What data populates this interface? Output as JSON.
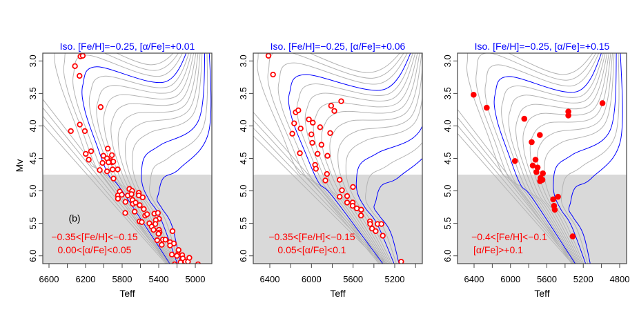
{
  "chart_data": [
    {
      "type": "scatter",
      "title": "Iso. [Fe/H]=−0.25,  [α/Fe]=+0.01",
      "xlabel": "Teff",
      "ylabel": "Mv",
      "xlim": [
        6668,
        4819
      ],
      "ylim": [
        2.88,
        6.12
      ],
      "y_reversed": true,
      "xticks": [
        6600,
        6400,
        6200,
        6000,
        5800,
        5600,
        5400,
        5200,
        5000
      ],
      "xtick_labels": [
        "6600",
        "6200",
        "5800",
        "5400",
        "5000"
      ],
      "yticks": [
        "3.0",
        "3.5",
        "4.0",
        "4.5",
        "5.0",
        "5.5",
        "6.0"
      ],
      "shaded_band_mv_from": 4.75,
      "marker": "open-circle",
      "annotations": [
        "(b)",
        "−0.35<[Fe/H]<−0.15",
        "0.00<[α/Fe]<0.05"
      ],
      "points": [
        [
          6256,
          2.93
        ],
        [
          6231,
          2.92
        ],
        [
          6316,
          3.08
        ],
        [
          6266,
          3.23
        ],
        [
          6035,
          3.71
        ],
        [
          6263,
          3.98
        ],
        [
          6361,
          4.08
        ],
        [
          6208,
          4.08
        ],
        [
          6198,
          4.43
        ],
        [
          6140,
          4.39
        ],
        [
          6165,
          4.52
        ],
        [
          5957,
          4.35
        ],
        [
          6005,
          4.46
        ],
        [
          5965,
          4.5
        ],
        [
          5912,
          4.45
        ],
        [
          5919,
          4.54
        ],
        [
          5909,
          4.56
        ],
        [
          5897,
          4.55
        ],
        [
          5949,
          4.56
        ],
        [
          6015,
          4.57
        ],
        [
          6045,
          4.68
        ],
        [
          5965,
          4.7
        ],
        [
          5904,
          4.67
        ],
        [
          5849,
          4.67
        ],
        [
          5894,
          4.81
        ],
        [
          5721,
          4.97
        ],
        [
          5691,
          5.0
        ],
        [
          5826,
          5.01
        ],
        [
          5846,
          5.07
        ],
        [
          5846,
          5.12
        ],
        [
          5804,
          5.06
        ],
        [
          5738,
          5.07
        ],
        [
          5698,
          5.05
        ],
        [
          5764,
          5.17
        ],
        [
          5686,
          5.14
        ],
        [
          5618,
          5.03
        ],
        [
          5618,
          5.07
        ],
        [
          5683,
          5.2
        ],
        [
          5653,
          5.18
        ],
        [
          5608,
          5.22
        ],
        [
          5575,
          5.1
        ],
        [
          5663,
          5.32
        ],
        [
          5766,
          5.34
        ],
        [
          5563,
          5.28
        ],
        [
          5610,
          5.47
        ],
        [
          5585,
          5.48
        ],
        [
          5548,
          5.38
        ],
        [
          5527,
          5.36
        ],
        [
          5447,
          5.35
        ],
        [
          5409,
          5.34
        ],
        [
          5397,
          5.43
        ],
        [
          5432,
          5.45
        ],
        [
          5437,
          5.51
        ],
        [
          5502,
          5.5
        ],
        [
          5477,
          5.55
        ],
        [
          5457,
          5.6
        ],
        [
          5397,
          5.6
        ],
        [
          5392,
          5.64
        ],
        [
          5402,
          5.66
        ],
        [
          5417,
          5.76
        ],
        [
          5354,
          5.75
        ],
        [
          5326,
          5.75
        ],
        [
          5367,
          5.83
        ],
        [
          5276,
          5.79
        ],
        [
          5234,
          5.81
        ],
        [
          5276,
          5.84
        ],
        [
          5249,
          5.62
        ],
        [
          5256,
          5.98
        ],
        [
          5183,
          5.91
        ],
        [
          5191,
          5.98
        ],
        [
          5201,
          6.0
        ],
        [
          5143,
          5.99
        ],
        [
          5136,
          6.04
        ],
        [
          5161,
          6.1
        ],
        [
          5108,
          6.09
        ],
        [
          5080,
          6.09
        ],
        [
          5065,
          6.03
        ],
        [
          4970,
          6.13
        ],
        [
          5226,
          6.13
        ]
      ]
    },
    {
      "type": "scatter",
      "title": "Iso. [Fe/H]=−0.25,  [α/Fe]=+0.06",
      "xlabel": "Teff",
      "ylabel": "",
      "xlim": [
        6559,
        4935
      ],
      "ylim": [
        2.88,
        6.12
      ],
      "y_reversed": true,
      "xticks": [
        6400,
        6200,
        6000,
        5800,
        5600,
        5400,
        5200,
        5000
      ],
      "xtick_labels": [
        "6400",
        "6000",
        "5600",
        "5200"
      ],
      "yticks": [
        "3.0",
        "3.5",
        "4.0",
        "4.5",
        "5.0",
        "5.5",
        "6.0"
      ],
      "shaded_band_mv_from": 4.75,
      "marker": "open-circle",
      "annotations": [
        "",
        "−0.35<[Fe/H]<−0.15",
        "0.05<[α/Fe]<0.1"
      ],
      "points": [
        [
          6413,
          2.92
        ],
        [
          6369,
          3.21
        ],
        [
          5714,
          3.62
        ],
        [
          5811,
          3.69
        ],
        [
          5780,
          3.77
        ],
        [
          6151,
          3.79
        ],
        [
          6126,
          3.76
        ],
        [
          6025,
          3.9
        ],
        [
          5987,
          3.95
        ],
        [
          6166,
          3.96
        ],
        [
          5917,
          4.02
        ],
        [
          6104,
          4.04
        ],
        [
          6184,
          4.12
        ],
        [
          6001,
          4.13
        ],
        [
          5820,
          4.11
        ],
        [
          5992,
          4.26
        ],
        [
          5904,
          4.29
        ],
        [
          5941,
          4.43
        ],
        [
          6111,
          4.42
        ],
        [
          5846,
          4.46
        ],
        [
          5965,
          4.6
        ],
        [
          5957,
          4.66
        ],
        [
          5851,
          4.74
        ],
        [
          5866,
          4.84
        ],
        [
          5729,
          4.83
        ],
        [
          5601,
          4.94
        ],
        [
          5707,
          4.99
        ],
        [
          5729,
          5.09
        ],
        [
          5657,
          5.08
        ],
        [
          5657,
          5.18
        ],
        [
          5604,
          5.18
        ],
        [
          5604,
          5.23
        ],
        [
          5564,
          5.27
        ],
        [
          5522,
          5.29
        ],
        [
          5524,
          5.38
        ],
        [
          5438,
          5.47
        ],
        [
          5436,
          5.51
        ],
        [
          5418,
          5.58
        ],
        [
          5383,
          5.62
        ],
        [
          5365,
          5.51
        ],
        [
          5328,
          5.51
        ],
        [
          5315,
          5.69
        ],
        [
          5138,
          6.09
        ]
      ]
    },
    {
      "type": "scatter",
      "title": "Iso. [Fe/H]=−0.25,  [α/Fe]=+0.15",
      "xlabel": "Teff",
      "ylabel": "",
      "xlim": [
        6582,
        4724
      ],
      "ylim": [
        2.88,
        6.12
      ],
      "y_reversed": true,
      "xticks": [
        6400,
        6200,
        6000,
        5800,
        5600,
        5400,
        5200,
        5000,
        4800
      ],
      "xtick_labels": [
        "6400",
        "6000",
        "5600",
        "5200",
        "4800"
      ],
      "yticks": [
        "3.0",
        "3.5",
        "4.0",
        "4.5",
        "5.0",
        "5.5",
        "6.0"
      ],
      "shaded_band_mv_from": 4.75,
      "marker": "filled-circle",
      "annotations": [
        "",
        "−0.4<[Fe/H]<−0.1",
        "[α/Fe]>+0.1"
      ],
      "points": [
        [
          6405,
          3.52
        ],
        [
          6261,
          3.72
        ],
        [
          4989,
          3.65
        ],
        [
          5364,
          3.78
        ],
        [
          5364,
          3.84
        ],
        [
          5848,
          3.89
        ],
        [
          5677,
          4.14
        ],
        [
          5767,
          4.25
        ],
        [
          5951,
          4.54
        ],
        [
          5725,
          4.52
        ],
        [
          5755,
          4.61
        ],
        [
          5702,
          4.64
        ],
        [
          5715,
          4.71
        ],
        [
          5644,
          4.73
        ],
        [
          5669,
          4.8
        ],
        [
          5649,
          4.83
        ],
        [
          5674,
          4.85
        ],
        [
          5531,
          5.13
        ],
        [
          5478,
          5.09
        ],
        [
          5521,
          5.23
        ],
        [
          5513,
          5.29
        ],
        [
          5316,
          5.7
        ]
      ]
    }
  ],
  "colors": {
    "title": "#0000ff",
    "points": "#ff0000",
    "annotation": "#ff0000",
    "isochrone_highlight": "#0000ff",
    "isochrone": "#b4b4b4",
    "band": "#d9d9d9"
  }
}
